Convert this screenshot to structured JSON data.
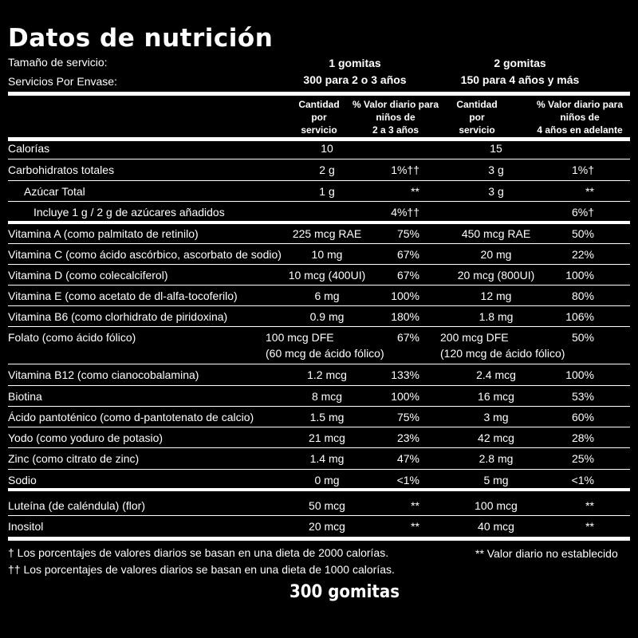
{
  "title": "Datos de nutrición",
  "serving_size_label": "Tamaño de servicio:",
  "servings_label": "Servicios Por Envase:",
  "group1": {
    "serving": "1 gomitas",
    "servings": "300 para 2 o 3 años"
  },
  "group2": {
    "serving": "2 gomitas",
    "servings": "150 para 4 años y más"
  },
  "headers": {
    "amount1": [
      "Cantidad",
      "por",
      "servicio"
    ],
    "dv1": [
      "% Valor diario para",
      "niños de",
      "2 a 3 años"
    ],
    "amount2": [
      "Cantidad",
      "por",
      "servicio"
    ],
    "dv2": [
      "% Valor diario para",
      "niños de",
      "4 años en adelante"
    ]
  },
  "rows": [
    {
      "name": "Calorías",
      "a1": "10",
      "d1": "",
      "a2": "15",
      "d2": ""
    },
    {
      "name": "Carbohidratos totales",
      "a1": "2 g",
      "d1": "1%††",
      "a2": "3 g",
      "d2": "1%†"
    },
    {
      "name": "Azúcar Total",
      "a1": "1 g",
      "d1": "**",
      "a2": "3 g",
      "d2": "**"
    },
    {
      "name": "Incluye 1 g / 2 g de azúcares añadidos",
      "a1": "",
      "d1": "4%††",
      "a2": "",
      "d2": "6%†"
    },
    {
      "name": "Vitamina A (como palmitato de retinilo)",
      "a1": "225 mcg RAE",
      "d1": "75%",
      "a2": "450 mcg RAE",
      "d2": "50%"
    },
    {
      "name": "Vitamina C (como ácido ascórbico, ascorbato de sodio)",
      "a1": "10 mg",
      "d1": "67%",
      "a2": "20 mg",
      "d2": "22%"
    },
    {
      "name": "Vitamina D (como colecalciferol)",
      "a1": "10 mcg (400UI)",
      "d1": "67%",
      "a2": "20 mcg (800UI)",
      "d2": "100%"
    },
    {
      "name": "Vitamina E (como acetato de dl-alfa-tocoferilo)",
      "a1": "6 mg",
      "d1": "100%",
      "a2": "12 mg",
      "d2": "80%"
    },
    {
      "name": "Vitamina B6 (como clorhidrato de piridoxina)",
      "a1": "0.9 mg",
      "d1": "180%",
      "a2": "1.8 mg",
      "d2": "106%"
    },
    {
      "name": "Folato (como ácido fólico)",
      "a1": "100 mcg DFE",
      "a1b": "(60 mcg de ácido fólico)",
      "d1": "67%",
      "a2": "200 mcg DFE",
      "a2b": "(120 mcg de ácido fólico)",
      "d2": "50%"
    },
    {
      "name": "Vitamina B12 (como cianocobalamina)",
      "a1": "1.2 mcg",
      "d1": "133%",
      "a2": "2.4 mcg",
      "d2": "100%"
    },
    {
      "name": "Biotina",
      "a1": "8 mcg",
      "d1": "100%",
      "a2": "16 mcg",
      "d2": "53%"
    },
    {
      "name": "Ácido pantoténico (como d-pantotenato de calcio)",
      "a1": "1.5 mg",
      "d1": "75%",
      "a2": "3 mg",
      "d2": "60%"
    },
    {
      "name": "Yodo (como yoduro de potasio)",
      "a1": "21 mcg",
      "d1": "23%",
      "a2": "42 mcg",
      "d2": "28%"
    },
    {
      "name": "Zinc (como citrato de zinc)",
      "a1": "1.4 mg",
      "d1": "47%",
      "a2": "2.8 mg",
      "d2": "25%"
    },
    {
      "name": "Sodio",
      "a1": "0 mg",
      "d1": "<1%",
      "a2": "5 mg",
      "d2": "<1%"
    },
    {
      "name": "Luteína (de caléndula) (flor)",
      "a1": "50 mcg",
      "d1": "**",
      "a2": "100 mcg",
      "d2": "**"
    },
    {
      "name": "Inositol",
      "a1": "20 mcg",
      "d1": "**",
      "a2": "40 mcg",
      "d2": "**"
    }
  ],
  "footnotes": {
    "dagger": "† Los porcentajes de valores diarios se basan en una dieta de 2000 calorías.",
    "double_dagger": "†† Los porcentajes de valores diarios se basan en una dieta de 1000 calorías.",
    "no_dv": "** Valor diario no establecido"
  },
  "count": "300 gomitas"
}
